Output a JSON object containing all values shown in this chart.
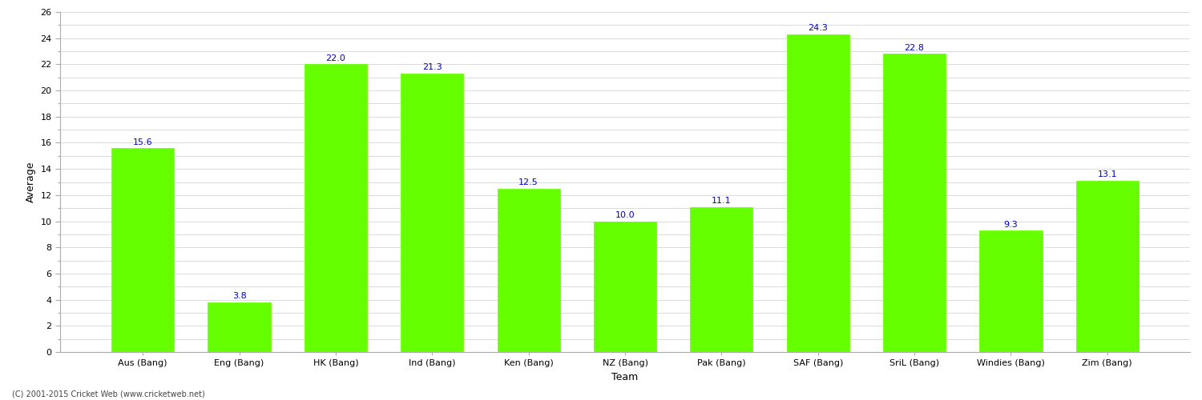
{
  "categories": [
    "Aus (Bang)",
    "Eng (Bang)",
    "HK (Bang)",
    "Ind (Bang)",
    "Ken (Bang)",
    "NZ (Bang)",
    "Pak (Bang)",
    "SAF (Bang)",
    "SriL (Bang)",
    "Windies (Bang)",
    "Zim (Bang)"
  ],
  "values": [
    15.6,
    3.8,
    22.0,
    21.3,
    12.5,
    10.0,
    11.1,
    24.3,
    22.8,
    9.3,
    13.1
  ],
  "bar_color": "#66ff00",
  "bar_edge_color": "#66ff00",
  "label_color": "#0000cc",
  "xlabel": "Team",
  "ylabel": "Average",
  "ylim": [
    0,
    26
  ],
  "yticks_major": [
    0,
    2,
    4,
    6,
    8,
    10,
    12,
    14,
    16,
    18,
    20,
    22,
    24,
    26
  ],
  "grid_color": "#cccccc",
  "background_color": "#ffffff",
  "label_fontsize": 8,
  "axis_label_fontsize": 9,
  "tick_fontsize": 8,
  "footer_text": "(C) 2001-2015 Cricket Web (www.cricketweb.net)"
}
